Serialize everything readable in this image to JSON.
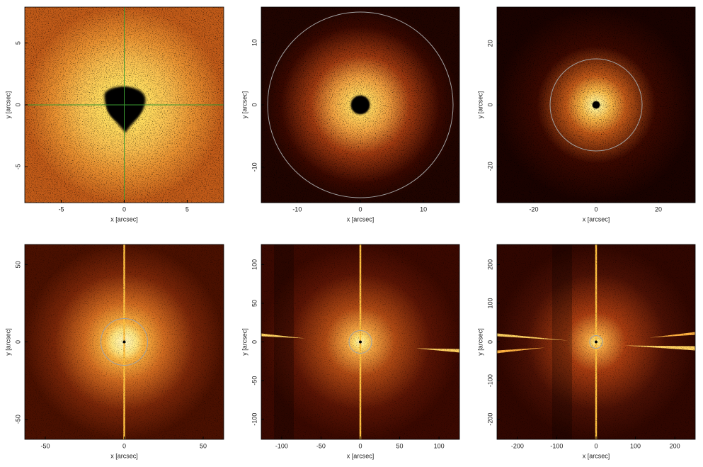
{
  "chart_data": [
    {
      "type": "image",
      "xlabel": "x [arcsec]",
      "ylabel": "y [arcsec]",
      "xlim": [
        -7.9,
        7.9
      ],
      "ylim": [
        -7.9,
        7.9
      ],
      "xticks": [
        -5,
        0,
        5
      ],
      "yticks": [
        -5,
        0,
        5
      ]
    },
    {
      "type": "image",
      "xlabel": "x [arcsec]",
      "ylabel": "y [arcsec]",
      "xlim": [
        -15.7,
        15.7
      ],
      "ylim": [
        -15.7,
        15.7
      ],
      "xticks": [
        -10,
        0,
        10
      ],
      "yticks": [
        -10,
        0,
        10
      ]
    },
    {
      "type": "image",
      "xlabel": "x [arcsec]",
      "ylabel": "y [arcsec]",
      "xlim": [
        -31.8,
        31.8
      ],
      "ylim": [
        -31.8,
        31.8
      ],
      "xticks": [
        -20,
        0,
        20
      ],
      "yticks": [
        -20,
        0,
        20
      ]
    },
    {
      "type": "image",
      "xlabel": "x [arcsec]",
      "ylabel": "y [arcsec]",
      "xlim": [
        -63,
        63
      ],
      "ylim": [
        -63,
        63
      ],
      "xticks": [
        -50,
        0,
        50
      ],
      "yticks": [
        -50,
        0,
        50
      ]
    },
    {
      "type": "image",
      "xlabel": "x [arcsec]",
      "ylabel": "y [arcsec]",
      "xlim": [
        -126,
        126
      ],
      "ylim": [
        -126,
        126
      ],
      "xticks": [
        -100,
        -50,
        0,
        50,
        100
      ],
      "yticks": [
        -100,
        -50,
        0,
        50,
        100
      ]
    },
    {
      "type": "image",
      "xlabel": "x [arcsec]",
      "ylabel": "y [arcsec]",
      "xlim": [
        -252,
        252
      ],
      "ylim": [
        -252,
        252
      ],
      "xticks": [
        -200,
        -100,
        0,
        100,
        200
      ],
      "yticks": [
        -200,
        -100,
        0,
        100,
        200
      ]
    }
  ]
}
